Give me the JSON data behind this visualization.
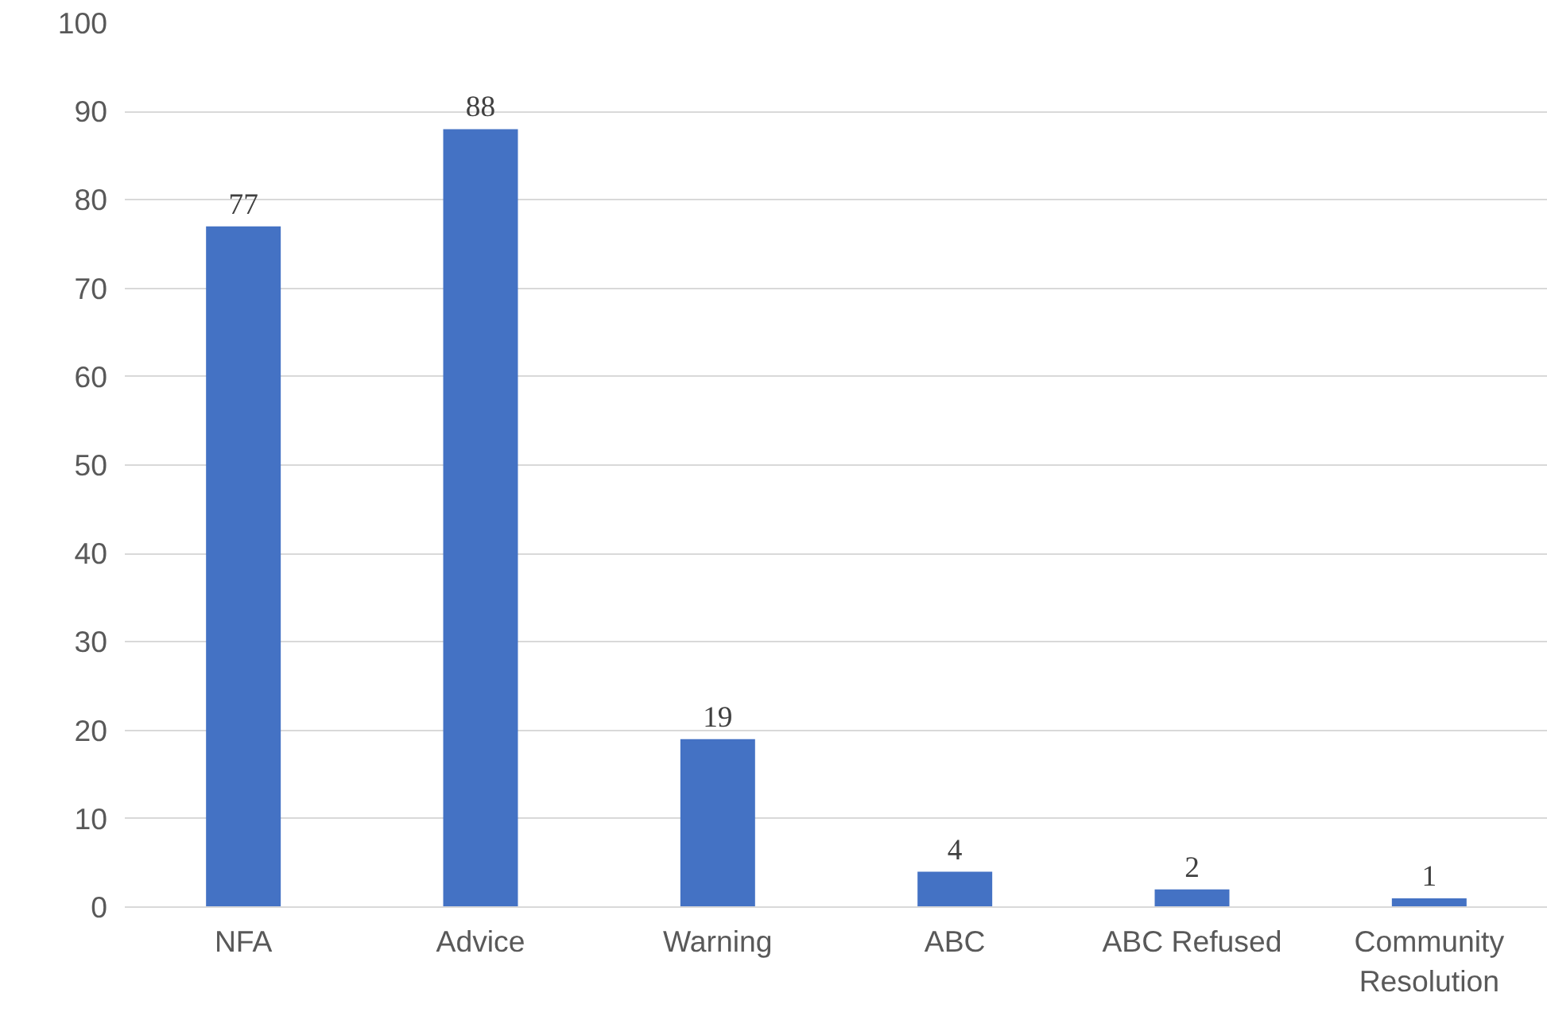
{
  "chart_data": {
    "type": "bar",
    "categories": [
      "NFA",
      "Advice",
      "Warning",
      "ABC",
      "ABC Refused",
      "Community Resolution"
    ],
    "values": [
      77,
      88,
      19,
      4,
      2,
      1
    ],
    "color": "#4472c4",
    "ylim": [
      0,
      100
    ],
    "yticks": [
      0,
      10,
      20,
      30,
      40,
      50,
      60,
      70,
      80,
      90,
      100
    ],
    "grid": "y",
    "data_labels": true
  }
}
